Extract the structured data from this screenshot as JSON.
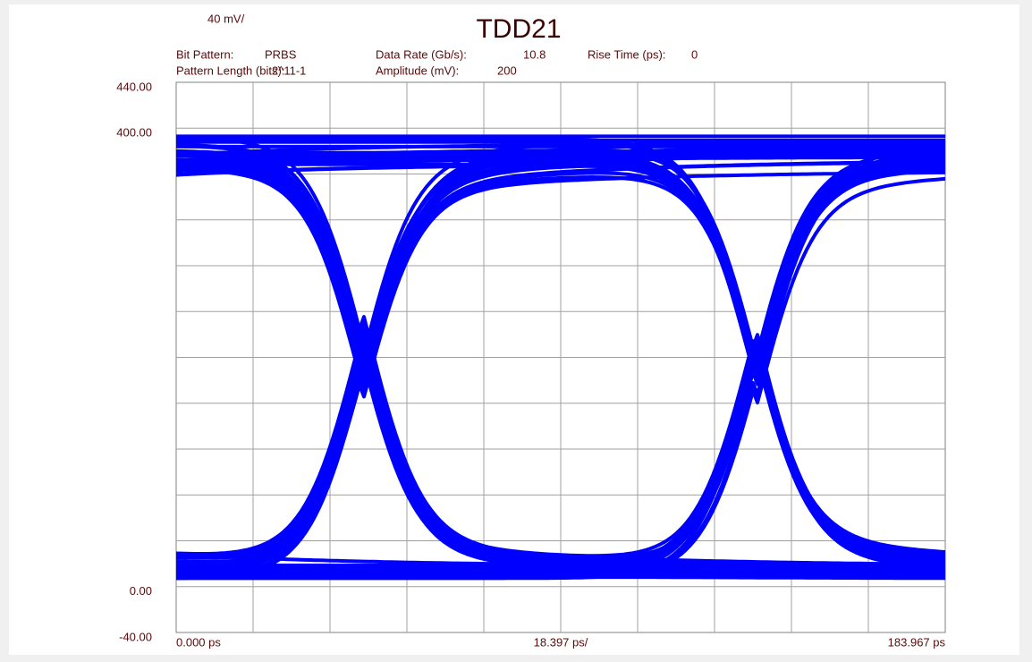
{
  "chart_data": {
    "type": "eye",
    "title": "TDD21",
    "y_scale_label": "40 mV/",
    "x_scale_label": "18.397 ps/",
    "info": [
      {
        "label": "Bit Pattern:",
        "value": "PRBS"
      },
      {
        "label": "Data Rate (Gb/s):",
        "value": "10.8"
      },
      {
        "label": "Rise Time (ps):",
        "value": "0"
      },
      {
        "label": "Pattern Length (bits):",
        "value": "2^11-1"
      },
      {
        "label": "Amplitude (mV):",
        "value": "200"
      }
    ],
    "ylim": [
      -40,
      440
    ],
    "yticks": [
      {
        "value": 440,
        "label": "440.00"
      },
      {
        "value": 400,
        "label": "400.00"
      },
      {
        "value": 0,
        "label": "0.00"
      },
      {
        "value": -40,
        "label": "-40.00"
      }
    ],
    "xlim": [
      0,
      183.967
    ],
    "xticks": [
      {
        "value": 0,
        "label": "0.000 ps"
      },
      {
        "value": 183.967,
        "label": "183.967 ps"
      }
    ],
    "xdivisions": 10,
    "ydivisions": 12,
    "grid": true,
    "color": "#0000ff"
  }
}
